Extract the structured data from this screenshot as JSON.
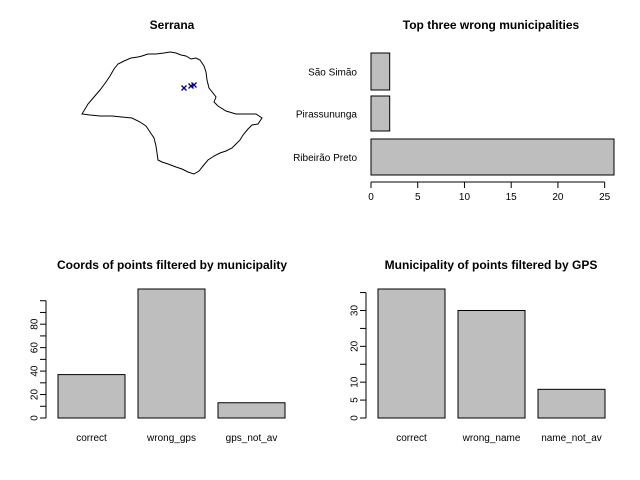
{
  "chart_data": [
    {
      "type": "map",
      "title": "Serrana",
      "markers": [
        {
          "symbol": "x",
          "color": "#00008b"
        },
        {
          "symbol": "x",
          "color": "#00008b"
        },
        {
          "symbol": "x",
          "color": "#00008b"
        }
      ]
    },
    {
      "type": "bar",
      "orientation": "horizontal",
      "title": "Top three wrong municipalities",
      "categories": [
        "São Simão",
        "Pirassununga",
        "Ribeirão Preto"
      ],
      "values": [
        2,
        2,
        26
      ],
      "xlim": [
        0,
        26
      ],
      "xticks": [
        0,
        5,
        10,
        15,
        20,
        25
      ],
      "bar_color": "#bebebe"
    },
    {
      "type": "bar",
      "title": "Coords of points filtered by municipality",
      "categories": [
        "correct",
        "wrong_gps",
        "gps_not_av"
      ],
      "values": [
        37,
        110,
        13
      ],
      "ylim": [
        0,
        110
      ],
      "yticks": [
        0,
        20,
        40,
        60,
        80
      ],
      "bar_color": "#bebebe"
    },
    {
      "type": "bar",
      "title": "Municipality of points filtered by GPS",
      "categories": [
        "correct",
        "wrong_name",
        "name_not_av"
      ],
      "values": [
        36,
        30,
        8
      ],
      "ylim": [
        0,
        36
      ],
      "yticks": [
        0,
        5,
        10,
        20,
        30
      ],
      "bar_color": "#bebebe"
    }
  ]
}
